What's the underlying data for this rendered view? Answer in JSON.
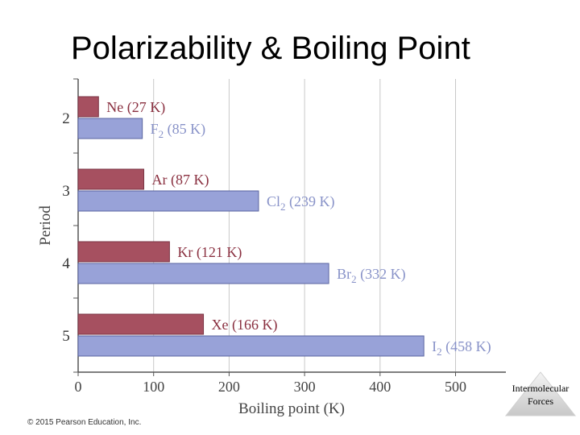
{
  "slide": {
    "title": "Polarizability & Boiling Point",
    "copyright": "© 2015 Pearson Education, Inc.",
    "badge_line1": "Intermolecular",
    "badge_line2": "Forces"
  },
  "chart_data": {
    "type": "bar",
    "orientation": "horizontal",
    "xlabel": "Boiling point (K)",
    "ylabel": "Period",
    "xlim": [
      0,
      550
    ],
    "xticks": [
      0,
      100,
      200,
      300,
      400,
      500
    ],
    "grid": true,
    "categories": [
      "2",
      "3",
      "4",
      "5"
    ],
    "colors": {
      "noble_gas": "#a65060",
      "halogen": "#98a2d8",
      "halogen_label": "#8892c8",
      "noble_gas_label": "#8a3040"
    },
    "series": [
      {
        "values": [
          27,
          87,
          121,
          166
        ],
        "labels": [
          {
            "formula": "Ne",
            "sub": "",
            "value": "(27 K)"
          },
          {
            "formula": "Ar",
            "sub": "",
            "value": "(87 K)"
          },
          {
            "formula": "Kr",
            "sub": "",
            "value": "(121 K)"
          },
          {
            "formula": "Xe",
            "sub": "",
            "value": "(166 K)"
          }
        ]
      },
      {
        "values": [
          85,
          239,
          332,
          458
        ],
        "labels": [
          {
            "formula": "F",
            "sub": "2",
            "value": "(85 K)"
          },
          {
            "formula": "Cl",
            "sub": "2",
            "value": "(239 K)"
          },
          {
            "formula": "Br",
            "sub": "2",
            "value": "(332 K)"
          },
          {
            "formula": "I",
            "sub": "2",
            "value": "(458 K)"
          }
        ]
      }
    ]
  }
}
